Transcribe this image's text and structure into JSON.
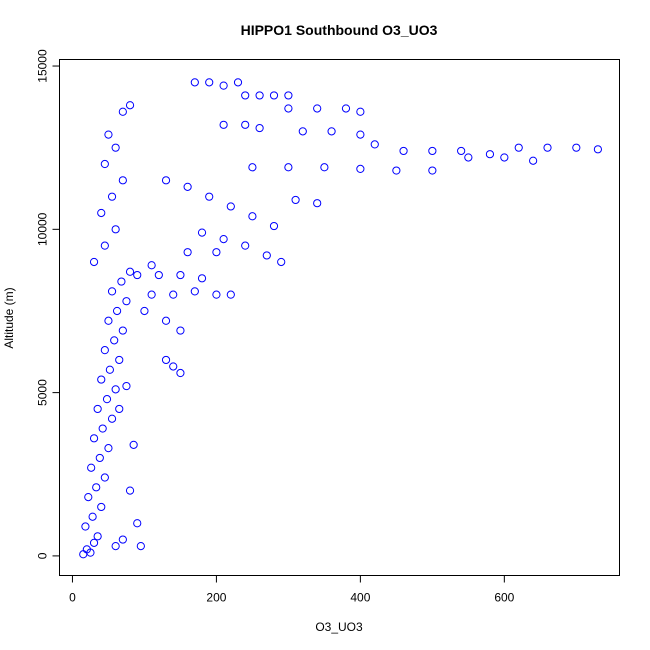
{
  "chart_data": {
    "type": "scatter",
    "title": "HIPPO1 Southbound O3_UO3",
    "xlabel": "O3_UO3",
    "ylabel": "Altitude (m)",
    "xlim": [
      -18,
      760
    ],
    "ylim": [
      -600,
      15200
    ],
    "x_ticks": [
      0,
      200,
      400,
      600
    ],
    "y_ticks": [
      0,
      5000,
      10000,
      15000
    ],
    "grid": false,
    "legend": "none",
    "marker": "open-circle",
    "color": "#0000ff",
    "series": [
      {
        "name": "",
        "points": [
          [
            15,
            50
          ],
          [
            20,
            200
          ],
          [
            25,
            100
          ],
          [
            30,
            400
          ],
          [
            35,
            600
          ],
          [
            18,
            900
          ],
          [
            28,
            1200
          ],
          [
            40,
            1500
          ],
          [
            22,
            1800
          ],
          [
            33,
            2100
          ],
          [
            45,
            2400
          ],
          [
            26,
            2700
          ],
          [
            38,
            3000
          ],
          [
            50,
            3300
          ],
          [
            30,
            3600
          ],
          [
            42,
            3900
          ],
          [
            55,
            4200
          ],
          [
            35,
            4500
          ],
          [
            48,
            4800
          ],
          [
            60,
            5100
          ],
          [
            40,
            5400
          ],
          [
            52,
            5700
          ],
          [
            65,
            6000
          ],
          [
            45,
            6300
          ],
          [
            58,
            6600
          ],
          [
            70,
            6900
          ],
          [
            50,
            7200
          ],
          [
            62,
            7500
          ],
          [
            75,
            7800
          ],
          [
            55,
            8100
          ],
          [
            68,
            8400
          ],
          [
            80,
            8700
          ],
          [
            30,
            9000
          ],
          [
            45,
            9500
          ],
          [
            60,
            10000
          ],
          [
            40,
            10500
          ],
          [
            55,
            11000
          ],
          [
            70,
            11500
          ],
          [
            45,
            12000
          ],
          [
            60,
            12500
          ],
          [
            50,
            12900
          ],
          [
            70,
            13600
          ],
          [
            80,
            13800
          ],
          [
            90,
            8600
          ],
          [
            120,
            8600
          ],
          [
            150,
            8600
          ],
          [
            180,
            8500
          ],
          [
            110,
            8000
          ],
          [
            140,
            8000
          ],
          [
            170,
            8100
          ],
          [
            200,
            8000
          ],
          [
            220,
            8000
          ],
          [
            100,
            7500
          ],
          [
            130,
            7200
          ],
          [
            150,
            6900
          ],
          [
            170,
            14500
          ],
          [
            190,
            14500
          ],
          [
            210,
            14400
          ],
          [
            230,
            14500
          ],
          [
            240,
            14100
          ],
          [
            260,
            14100
          ],
          [
            280,
            14100
          ],
          [
            300,
            14100
          ],
          [
            210,
            13200
          ],
          [
            240,
            13200
          ],
          [
            260,
            13100
          ],
          [
            300,
            13700
          ],
          [
            340,
            13700
          ],
          [
            380,
            13700
          ],
          [
            400,
            13600
          ],
          [
            320,
            13000
          ],
          [
            360,
            13000
          ],
          [
            400,
            12900
          ],
          [
            420,
            12600
          ],
          [
            460,
            12400
          ],
          [
            500,
            12400
          ],
          [
            540,
            12400
          ],
          [
            580,
            12300
          ],
          [
            620,
            12500
          ],
          [
            660,
            12500
          ],
          [
            700,
            12500
          ],
          [
            730,
            12450
          ],
          [
            250,
            11900
          ],
          [
            300,
            11900
          ],
          [
            350,
            11900
          ],
          [
            400,
            11850
          ],
          [
            450,
            11800
          ],
          [
            500,
            11800
          ],
          [
            550,
            12200
          ],
          [
            600,
            12200
          ],
          [
            640,
            12100
          ],
          [
            130,
            11500
          ],
          [
            160,
            11300
          ],
          [
            190,
            11000
          ],
          [
            220,
            10700
          ],
          [
            250,
            10400
          ],
          [
            280,
            10100
          ],
          [
            310,
            10900
          ],
          [
            340,
            10800
          ],
          [
            180,
            9900
          ],
          [
            210,
            9700
          ],
          [
            240,
            9500
          ],
          [
            270,
            9200
          ],
          [
            290,
            9000
          ],
          [
            160,
            9300
          ],
          [
            200,
            9300
          ],
          [
            110,
            8900
          ],
          [
            130,
            6000
          ],
          [
            140,
            5800
          ],
          [
            150,
            5600
          ],
          [
            80,
            2000
          ],
          [
            90,
            1000
          ],
          [
            95,
            300
          ],
          [
            60,
            300
          ],
          [
            70,
            500
          ],
          [
            85,
            3400
          ],
          [
            65,
            4500
          ],
          [
            75,
            5200
          ]
        ]
      }
    ]
  }
}
